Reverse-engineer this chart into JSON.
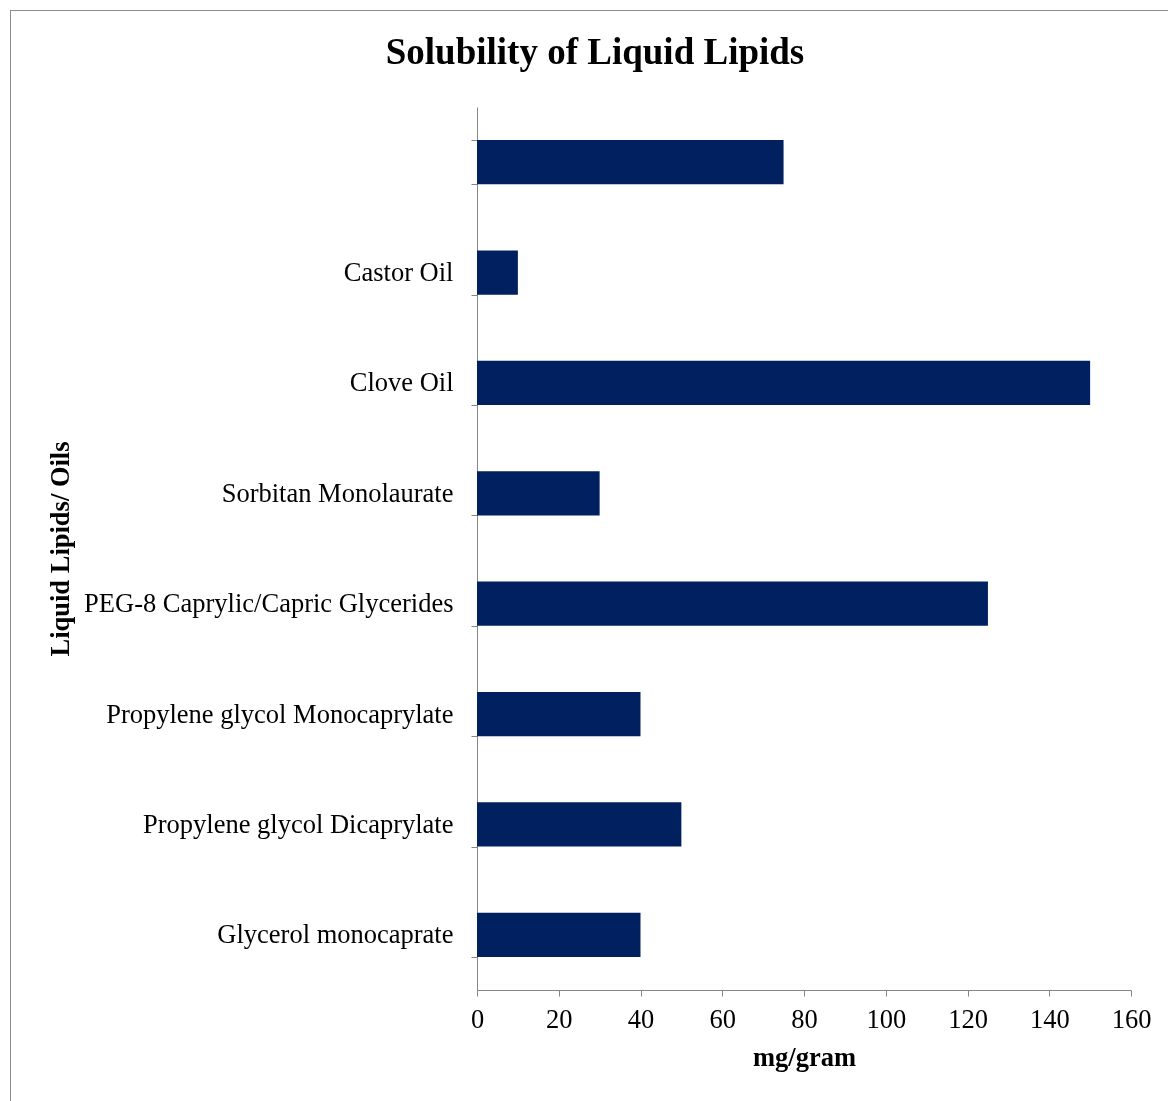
{
  "chart_data": {
    "type": "bar",
    "title": "Solubility of Liquid Lipids",
    "xlabel": "mg/gram",
    "ylabel": "Liquid Lipids/ Oils",
    "orientation": "horizontal",
    "categories": [
      null,
      "Castor Oil",
      "Clove Oil",
      "Sorbitan Monolaurate",
      "PEG-8 Caprylic/Capric Glycerides",
      "Propylene glycol Monocaprylate",
      "Propylene glycol Dicaprylate",
      "Glycerol monocaprate"
    ],
    "values": [
      75,
      10,
      150,
      30,
      125,
      40,
      50,
      40
    ],
    "color": "#002060",
    "xlim": [
      0,
      160
    ],
    "xticks": [
      0,
      20,
      40,
      60,
      80,
      100,
      120,
      140,
      160
    ]
  }
}
